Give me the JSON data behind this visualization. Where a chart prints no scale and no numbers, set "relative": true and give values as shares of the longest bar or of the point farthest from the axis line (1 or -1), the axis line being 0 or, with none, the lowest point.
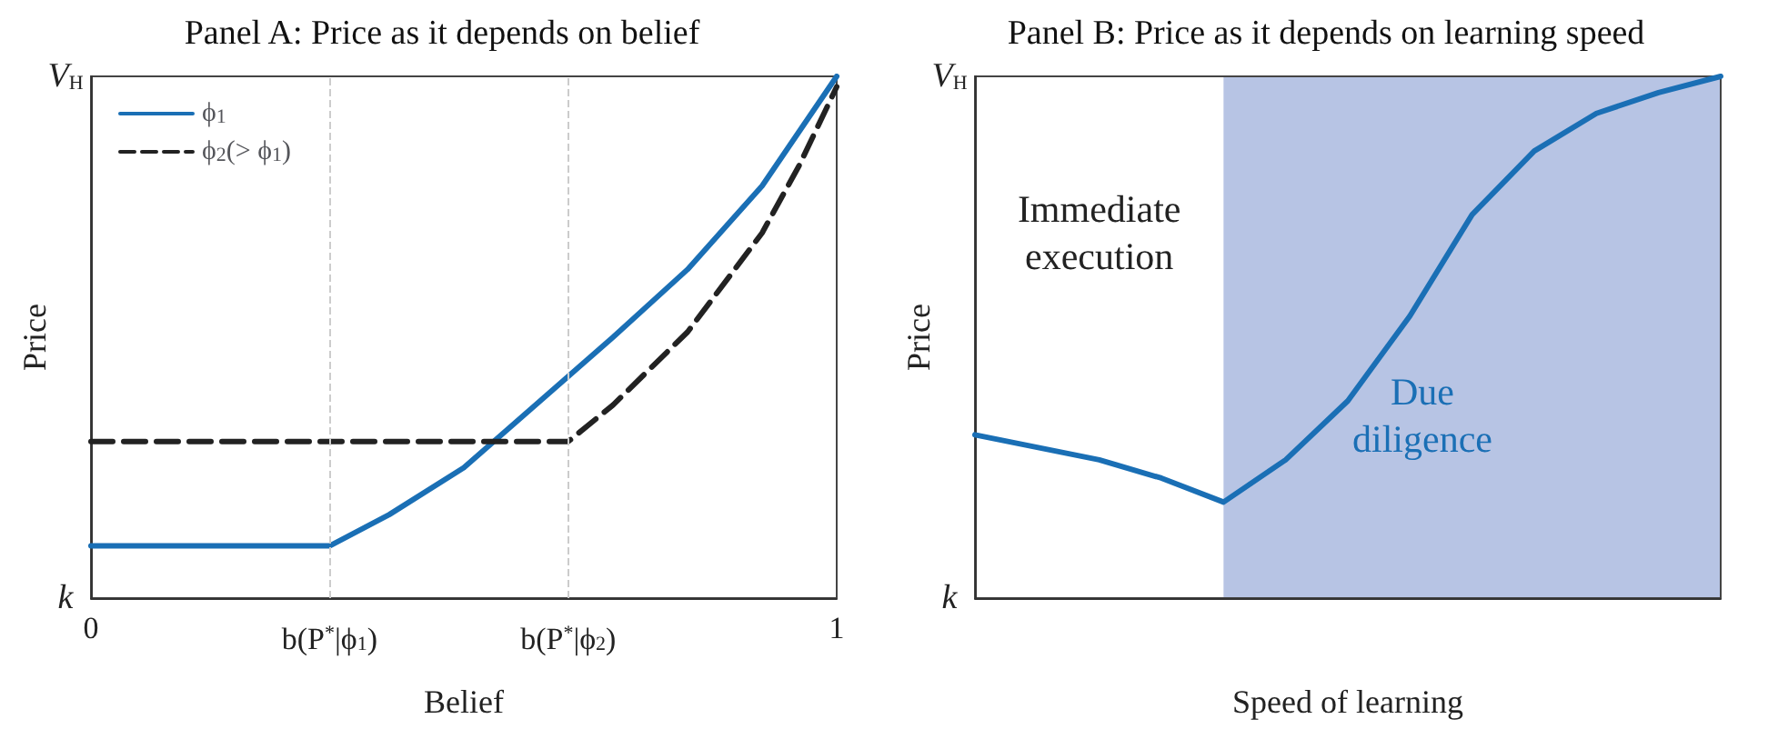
{
  "chart_data": [
    {
      "type": "line",
      "title": "Panel A: Price as it depends on belief",
      "xlabel": "Belief",
      "ylabel": "Price",
      "relative": true,
      "series": [
        {
          "name": "ϕ$_{1}$",
          "color": "#1a6fb5",
          "line_style": "solid",
          "x": [
            0,
            0.32,
            0.4,
            0.5,
            0.6,
            0.7,
            0.8,
            0.9,
            1
          ],
          "values": [
            0.1,
            0.1,
            0.16,
            0.25,
            0.375,
            0.5,
            0.63,
            0.79,
            1
          ]
        },
        {
          "name": "ϕ$_{2}$(> ϕ$_{1}$)",
          "color": "#222222",
          "line_style": "dashed",
          "x": [
            0,
            0.64,
            0.7,
            0.8,
            0.9,
            0.95,
            1
          ],
          "values": [
            0.3,
            0.3,
            0.37,
            0.51,
            0.7,
            0.83,
            0.98
          ]
        }
      ],
      "xlim": [
        0,
        1
      ],
      "xticks": [
        0,
        1
      ],
      "tick_labels": "x",
      "ref_lines": [
        {
          "axis": "x",
          "value": 0.32,
          "label": "b(P$^{*}$|ϕ$_{1}$)",
          "color": "#cccccc",
          "line_style": "dashed"
        },
        {
          "axis": "x",
          "value": 0.64,
          "label": "b(P$^{*}$|ϕ$_{2}$)",
          "color": "#cccccc",
          "line_style": "dashed"
        }
      ],
      "annotations": [
        "k",
        "V$_{H}$"
      ],
      "legend": "top left",
      "marker": "none"
    },
    {
      "type": "line",
      "title": "Panel B: Price as it depends on learning speed",
      "xlabel": "Speed of learning",
      "ylabel": "Price",
      "relative": true,
      "categories": [
        null,
        null,
        null,
        null,
        null,
        null,
        null,
        null,
        null,
        null,
        null,
        null,
        null
      ],
      "series": [
        {
          "color": "#1a6fb5",
          "values": [
            0.313,
            0.289,
            0.265,
            0.23,
            0.184,
            0.265,
            0.378,
            0.541,
            0.735,
            0.857,
            0.929,
            0.969,
            1
          ]
        }
      ],
      "tick_labels": false,
      "annotations": [
        "k",
        "V$_{H}$",
        "Immediate execution",
        "Due diligence"
      ],
      "marker": "none"
    }
  ]
}
